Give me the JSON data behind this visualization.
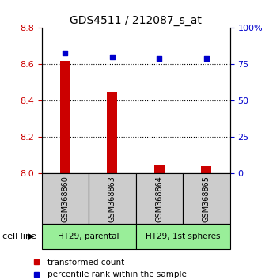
{
  "title": "GDS4511 / 212087_s_at",
  "samples": [
    "GSM368860",
    "GSM368863",
    "GSM368864",
    "GSM368865"
  ],
  "bar_values": [
    8.62,
    8.45,
    8.05,
    8.04
  ],
  "percentile_values": [
    83,
    80,
    79,
    79
  ],
  "bar_color": "#cc0000",
  "dot_color": "#0000cc",
  "ylim_left": [
    8.0,
    8.8
  ],
  "ylim_right": [
    0,
    100
  ],
  "yticks_left": [
    8.0,
    8.2,
    8.4,
    8.6,
    8.8
  ],
  "yticks_right": [
    0,
    25,
    50,
    75,
    100
  ],
  "ytick_labels_right": [
    "0",
    "25",
    "50",
    "75",
    "100%"
  ],
  "grid_values": [
    8.2,
    8.4,
    8.6
  ],
  "groups": [
    {
      "label": "HT29, parental",
      "samples": [
        0,
        1
      ],
      "color": "#99ee99"
    },
    {
      "label": "HT29, 1st spheres",
      "samples": [
        2,
        3
      ],
      "color": "#99ee99"
    }
  ],
  "cell_line_label": "cell line",
  "legend_bar_label": "transformed count",
  "legend_dot_label": "percentile rank within the sample",
  "background_color": "#ffffff",
  "plot_bg_color": "#ffffff",
  "sample_box_color": "#cccccc",
  "bar_width": 0.22,
  "figsize": [
    3.4,
    3.54
  ],
  "dpi": 100
}
